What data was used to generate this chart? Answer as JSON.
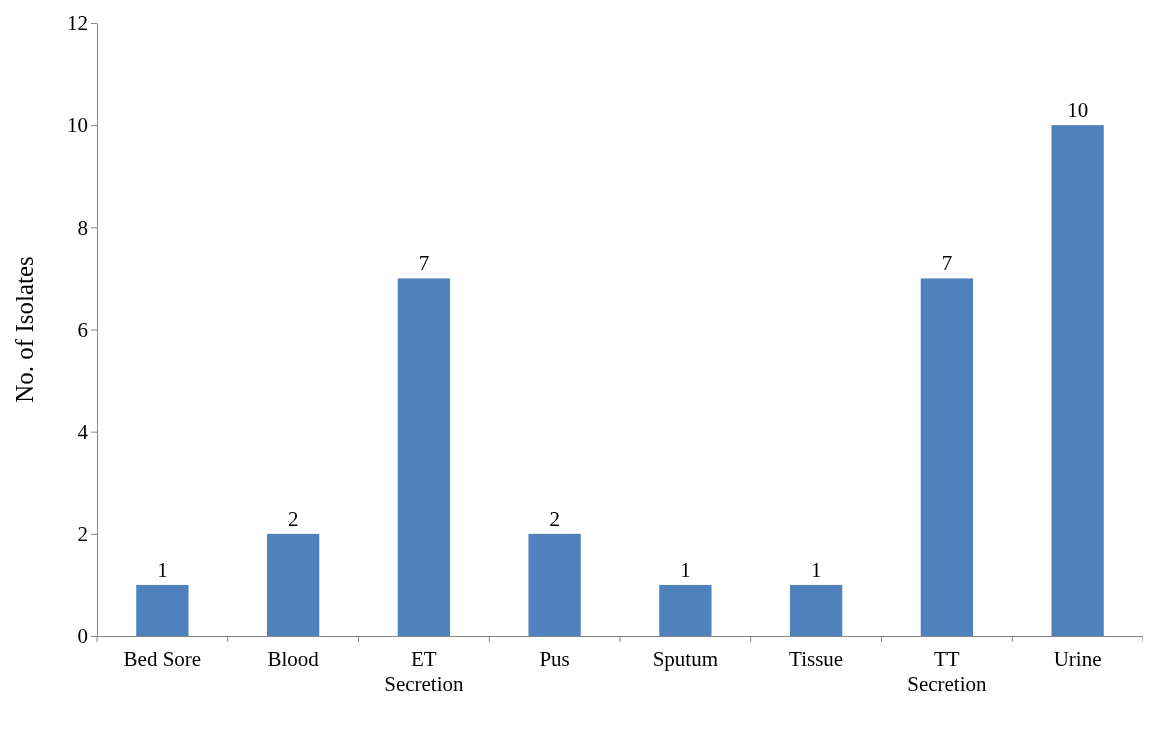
{
  "chart_data": {
    "type": "bar",
    "ylabel": "No. of Isolates",
    "categories": [
      "Bed Sore",
      "Blood",
      "ET Secretion",
      "Pus",
      "Sputum",
      "Tissue",
      "TT Secretion",
      "Urine"
    ],
    "values": [
      1,
      2,
      7,
      2,
      1,
      1,
      7,
      10
    ],
    "color": "#4f81bd",
    "ylim": [
      0,
      12
    ],
    "yticks": [
      0,
      2,
      4,
      6,
      8,
      10,
      12
    ],
    "data_labels": true
  }
}
